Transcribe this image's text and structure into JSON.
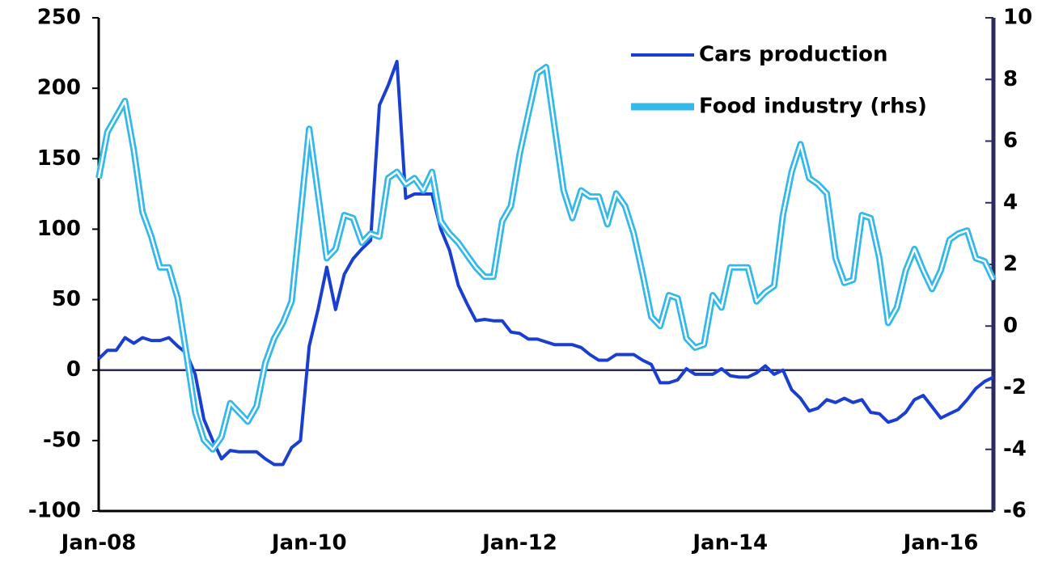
{
  "chart_data": {
    "type": "line",
    "categories": [
      "Jan-08",
      null,
      null,
      null,
      null,
      null,
      null,
      null,
      null,
      null,
      null,
      null,
      null,
      null,
      null,
      null,
      null,
      null,
      null,
      null,
      null,
      null,
      null,
      null,
      "Jan-10",
      null,
      null,
      null,
      null,
      null,
      null,
      null,
      null,
      null,
      null,
      null,
      null,
      null,
      null,
      null,
      null,
      null,
      null,
      null,
      null,
      null,
      null,
      null,
      "Jan-12",
      null,
      null,
      null,
      null,
      null,
      null,
      null,
      null,
      null,
      null,
      null,
      null,
      null,
      null,
      null,
      null,
      null,
      null,
      null,
      null,
      null,
      null,
      null,
      "Jan-14",
      null,
      null,
      null,
      null,
      null,
      null,
      null,
      null,
      null,
      null,
      null,
      null,
      null,
      null,
      null,
      null,
      null,
      null,
      null,
      null,
      null,
      null,
      null,
      "Jan-16",
      null,
      null,
      null,
      null,
      null,
      null
    ],
    "series": [
      {
        "name": "Cars production",
        "color": "#1a3fd0",
        "values": [
          8,
          14,
          14,
          23,
          19,
          23,
          21,
          21,
          23,
          17,
          12,
          -3,
          -35,
          -50,
          -63,
          -57,
          -58,
          -58,
          -58,
          -63,
          -67,
          -67,
          -55,
          -50,
          17,
          43,
          73,
          43,
          68,
          79,
          86,
          92,
          188,
          202,
          219,
          122,
          125,
          125,
          125,
          100,
          85,
          60,
          47,
          35,
          36,
          35,
          35,
          27,
          26,
          22,
          22,
          20,
          18,
          18,
          18,
          16,
          11,
          7,
          7,
          11,
          11,
          11,
          7,
          4,
          -9,
          -9,
          -7,
          1,
          -3,
          -3,
          -3,
          1,
          -4,
          -5,
          -5,
          -2,
          3,
          -3,
          0,
          -14,
          -20,
          -29,
          -27,
          -21,
          -23,
          -20,
          -23,
          -21,
          -30,
          -31,
          -37,
          -35,
          -30,
          -21,
          -18,
          -26,
          -34,
          -31,
          -28,
          -21,
          -13,
          -8,
          -5
        ]
      },
      {
        "name": "Food industry (rhs)",
        "color": "#33b8ea",
        "axis": "y2",
        "values": [
          4.8,
          6.3,
          6.8,
          7.3,
          5.7,
          3.7,
          2.9,
          1.9,
          1.9,
          0.9,
          -0.9,
          -2.8,
          -3.7,
          -4.0,
          -3.6,
          -2.5,
          -2.8,
          -3.1,
          -2.6,
          -1.2,
          -0.4,
          0.1,
          0.8,
          3.6,
          6.4,
          4.3,
          2.2,
          2.5,
          3.6,
          3.5,
          2.7,
          3.0,
          2.9,
          4.8,
          5.0,
          4.6,
          4.8,
          4.4,
          5.0,
          3.4,
          3.0,
          2.7,
          2.3,
          1.9,
          1.6,
          1.6,
          3.4,
          3.9,
          5.6,
          6.9,
          8.2,
          8.4,
          6.4,
          4.4,
          3.5,
          4.4,
          4.2,
          4.2,
          3.3,
          4.3,
          3.9,
          3.0,
          1.7,
          0.3,
          0.0,
          1.0,
          0.9,
          -0.4,
          -0.7,
          -0.6,
          1.0,
          0.6,
          1.9,
          1.9,
          1.9,
          0.8,
          1.1,
          1.3,
          3.6,
          5.0,
          5.9,
          4.8,
          4.6,
          4.3,
          2.2,
          1.4,
          1.5,
          3.6,
          3.5,
          2.2,
          0.1,
          0.6,
          1.8,
          2.5,
          1.8,
          1.2,
          1.8,
          2.8,
          3.0,
          3.1,
          2.2,
          2.1,
          1.5
        ]
      }
    ],
    "ylim": [
      -100,
      250
    ],
    "yticks": [
      -100,
      -50,
      0,
      50,
      100,
      150,
      200,
      250
    ],
    "y2lim": [
      -6,
      10
    ],
    "y2ticks": [
      -6,
      -4,
      -2,
      0,
      2,
      4,
      6,
      8,
      10
    ],
    "legend": "upper right"
  }
}
